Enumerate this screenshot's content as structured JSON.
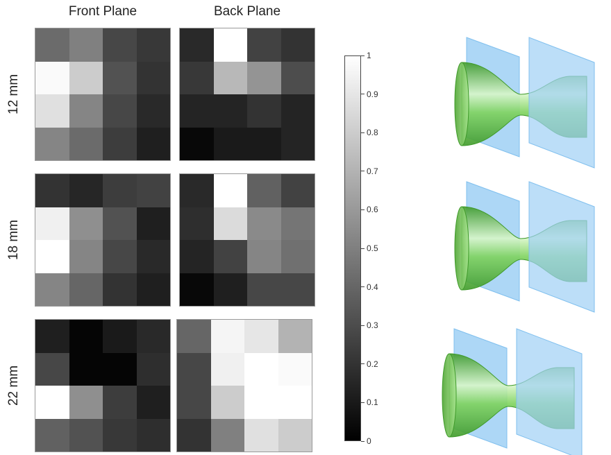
{
  "columns": [
    {
      "title": "Front Plane"
    },
    {
      "title": "Back Plane"
    }
  ],
  "rows": [
    {
      "label": "12 mm",
      "front": [
        [
          0.42,
          0.5,
          0.28,
          0.22
        ],
        [
          0.98,
          0.8,
          0.32,
          0.2
        ],
        [
          0.88,
          0.52,
          0.28,
          0.16
        ],
        [
          0.52,
          0.42,
          0.24,
          0.12
        ]
      ],
      "back": [
        [
          0.16,
          1.0,
          0.26,
          0.2
        ],
        [
          0.22,
          0.72,
          0.58,
          0.3
        ],
        [
          0.14,
          0.14,
          0.2,
          0.14
        ],
        [
          0.03,
          0.1,
          0.1,
          0.14
        ]
      ]
    },
    {
      "label": "18 mm",
      "front": [
        [
          0.2,
          0.15,
          0.24,
          0.26
        ],
        [
          0.94,
          0.56,
          0.32,
          0.12
        ],
        [
          1.0,
          0.52,
          0.28,
          0.16
        ],
        [
          0.52,
          0.4,
          0.2,
          0.12
        ]
      ],
      "back": [
        [
          0.16,
          1.0,
          0.38,
          0.26
        ],
        [
          0.18,
          0.86,
          0.54,
          0.46
        ],
        [
          0.14,
          0.26,
          0.52,
          0.44
        ],
        [
          0.03,
          0.12,
          0.28,
          0.28
        ]
      ]
    },
    {
      "label": "22 mm",
      "front": [
        [
          0.12,
          0.02,
          0.1,
          0.16
        ],
        [
          0.28,
          0.02,
          0.02,
          0.18
        ],
        [
          1.0,
          0.56,
          0.24,
          0.12
        ],
        [
          0.38,
          0.32,
          0.22,
          0.18
        ]
      ],
      "back": [
        [
          0.4,
          0.96,
          0.9,
          0.7
        ],
        [
          0.28,
          0.94,
          1.0,
          0.98
        ],
        [
          0.28,
          0.8,
          1.0,
          1.0
        ],
        [
          0.2,
          0.5,
          0.88,
          0.8
        ]
      ]
    }
  ],
  "colorbar": {
    "min": 0,
    "max": 1,
    "ticks": [
      "0",
      "0.1",
      "0.2",
      "0.3",
      "0.4",
      "0.5",
      "0.6",
      "0.7",
      "0.8",
      "0.9",
      "1"
    ]
  },
  "colors": {
    "plane": "#9fd0f5",
    "plane_edge": "#7fbfee",
    "beam": "#6fca4f",
    "beam_light": "#d8f6c8",
    "beam_dark": "#3f9a2a"
  }
}
